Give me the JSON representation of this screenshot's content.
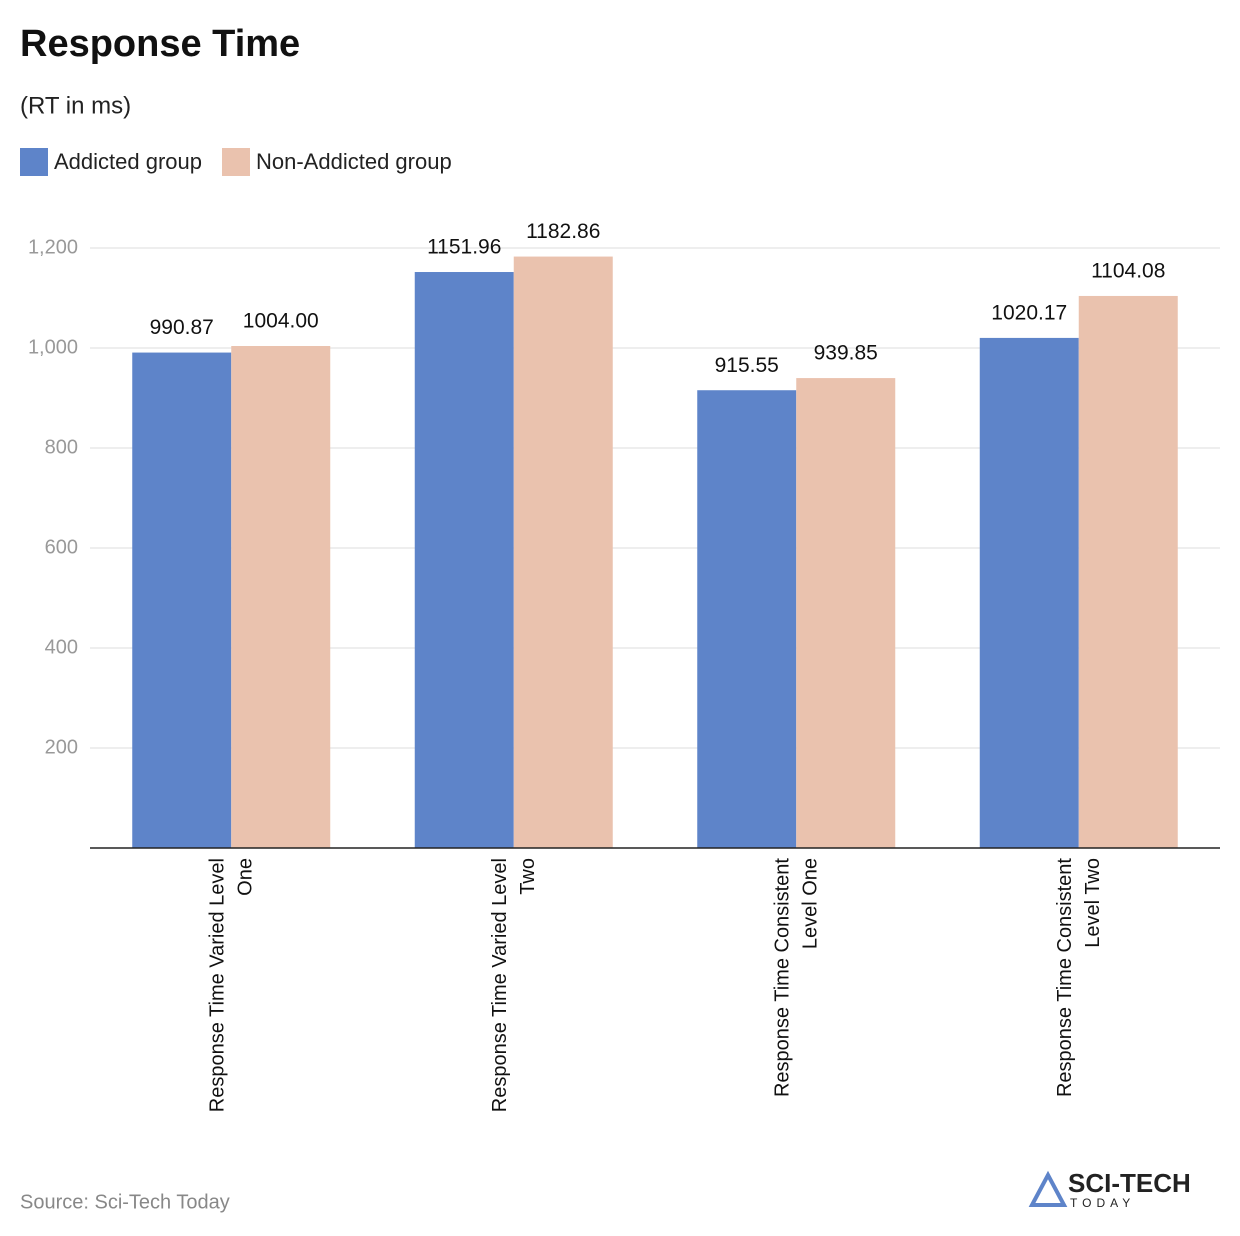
{
  "chart_data": {
    "type": "bar",
    "title": "Response Time",
    "subtitle": "(RT in ms)",
    "categories": [
      "Response Time Varied Level One",
      "Response Time Varied Level Two",
      "Response Time Consistent Level One",
      "Response Time Consistent Level Two"
    ],
    "series": [
      {
        "name": "Addicted group",
        "color": "#5e84c9",
        "values": [
          990.87,
          1151.96,
          915.55,
          1020.17
        ]
      },
      {
        "name": "Non-Addicted group",
        "color": "#eac2ae",
        "values": [
          1004,
          1182.86,
          939.85,
          1104.08
        ],
        "value_labels": [
          "1004.00",
          "1182.86",
          "939.85",
          "1104.08"
        ]
      }
    ],
    "ylim": [
      0,
      1200
    ],
    "yticks": [
      200,
      400,
      600,
      800,
      {
        "value": 1000,
        "label": "1,000"
      },
      {
        "value": 1200,
        "label": "1,200"
      }
    ],
    "grid": true,
    "legend": "top-left",
    "source": "Source: Sci-Tech Today",
    "logo": {
      "name": "SCI-TECH",
      "tagline": "TODAY"
    }
  }
}
